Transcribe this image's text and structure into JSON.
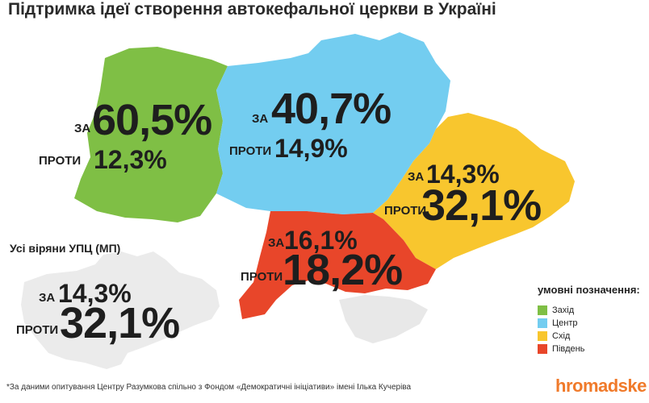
{
  "title": "Підтримка ідеї створення автокефальної церкви в Україні",
  "colors": {
    "west": "#7fbf45",
    "center": "#73cdf0",
    "east": "#f8c62e",
    "south": "#e8462a",
    "upc": "#ebebeb",
    "text": "#1e1e1e",
    "brand": "#f07a2a"
  },
  "regions": {
    "west": {
      "for_label": "ЗА",
      "for_value": "60,5%",
      "against_label": "ПРОТИ",
      "against_value": "12,3%"
    },
    "center": {
      "for_label": "ЗА",
      "for_value": "40,7%",
      "against_label": "ПРОТИ",
      "against_value": "14,9%"
    },
    "east": {
      "for_label": "ЗА",
      "for_value": "14,3%",
      "against_label": "ПРОТИ",
      "against_value": "32,1%"
    },
    "south": {
      "for_label": "ЗА",
      "for_value": "16,1%",
      "against_label": "ПРОТИ",
      "against_value": "18,2%"
    }
  },
  "upc": {
    "title": "Усі віряни УПЦ (МП)",
    "for_label": "ЗА",
    "for_value": "14,3%",
    "against_label": "ПРОТИ",
    "against_value": "32,1%"
  },
  "legend": {
    "title": "умовні позначення:",
    "items": [
      {
        "label": "Захід",
        "color": "#7fbf45"
      },
      {
        "label": "Центр",
        "color": "#73cdf0"
      },
      {
        "label": "Схід",
        "color": "#f8c62e"
      },
      {
        "label": "Південь",
        "color": "#e8462a"
      }
    ]
  },
  "footnote": "*За даними опитування Центру Разумкова спільно з Фондом «Демократичні ініціативи» імені Ілька Кучеріва",
  "brand": "hromadske"
}
